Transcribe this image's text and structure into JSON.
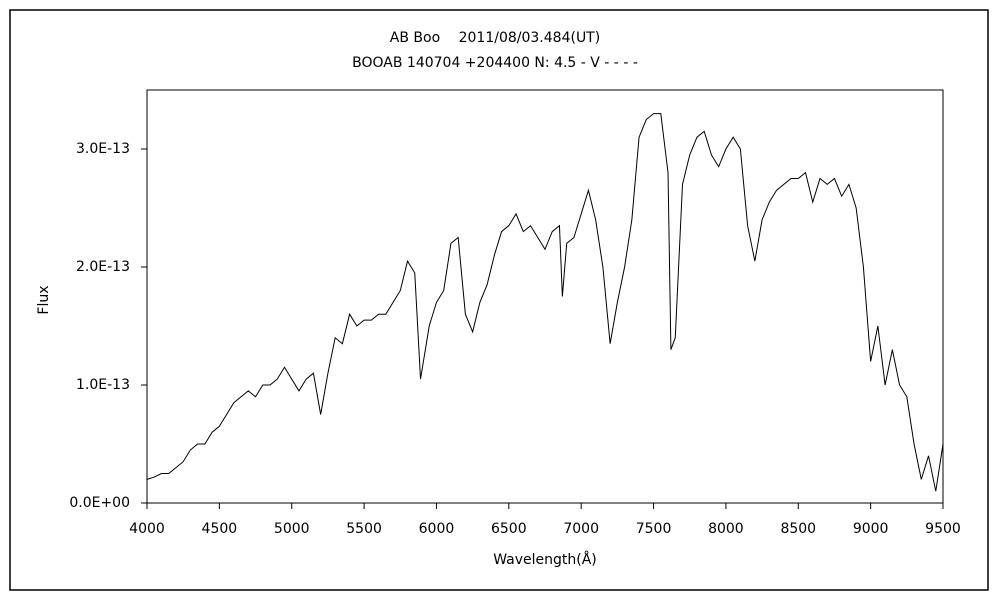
{
  "chart_data": {
    "type": "line",
    "title": "AB Boo　 2011/08/03.484(UT)",
    "subtitle": "BOOAB 140704 +204400 N: 4.5 - V - - - -",
    "x_label": "Wavelength(Å)",
    "y_label": "Flux",
    "color": "#000000",
    "grid": false,
    "xlim": [
      4000,
      9500
    ],
    "xticks": [
      4000,
      4500,
      5000,
      5500,
      6000,
      6500,
      7000,
      7500,
      8000,
      8500,
      9000,
      9500
    ],
    "ylim": [
      0,
      3.5e-13
    ],
    "yticks": [
      {
        "value": 0,
        "label": "0.0E+00"
      },
      {
        "value": 1e-13,
        "label": "1.0E-13"
      },
      {
        "value": 2e-13,
        "label": "2.0E-13"
      },
      {
        "value": 3e-13,
        "label": "3.0E-13"
      }
    ],
    "x": [
      4000,
      4050,
      4100,
      4150,
      4200,
      4250,
      4300,
      4350,
      4400,
      4450,
      4500,
      4550,
      4600,
      4650,
      4700,
      4750,
      4800,
      4850,
      4900,
      4950,
      5000,
      5050,
      5100,
      5150,
      5200,
      5250,
      5300,
      5350,
      5400,
      5450,
      5500,
      5550,
      5600,
      5650,
      5700,
      5750,
      5800,
      5850,
      5890,
      5950,
      6000,
      6050,
      6100,
      6150,
      6200,
      6250,
      6300,
      6350,
      6400,
      6450,
      6500,
      6550,
      6600,
      6650,
      6700,
      6750,
      6800,
      6850,
      6870,
      6900,
      6950,
      7000,
      7050,
      7100,
      7150,
      7200,
      7250,
      7300,
      7350,
      7400,
      7450,
      7500,
      7550,
      7600,
      7620,
      7650,
      7700,
      7750,
      7800,
      7850,
      7900,
      7950,
      8000,
      8050,
      8100,
      8150,
      8200,
      8250,
      8300,
      8350,
      8400,
      8450,
      8500,
      8550,
      8600,
      8650,
      8700,
      8750,
      8800,
      8850,
      8900,
      8950,
      9000,
      9050,
      9100,
      9150,
      9200,
      9250,
      9300,
      9350,
      9400,
      9450,
      9500
    ],
    "values": [
      2e-14,
      2.2e-14,
      2.5e-14,
      2.5e-14,
      3e-14,
      3.5e-14,
      4.5e-14,
      5e-14,
      5e-14,
      6e-14,
      6.5e-14,
      7.5e-14,
      8.5e-14,
      9e-14,
      9.5e-14,
      9e-14,
      1e-13,
      1e-13,
      1.05e-13,
      1.15e-13,
      1.05e-13,
      9.5e-14,
      1.05e-13,
      1.1e-13,
      7.5e-14,
      1.1e-13,
      1.4e-13,
      1.35e-13,
      1.6e-13,
      1.5e-13,
      1.55e-13,
      1.55e-13,
      1.6e-13,
      1.6e-13,
      1.7e-13,
      1.8e-13,
      2.05e-13,
      1.95e-13,
      1.05e-13,
      1.5e-13,
      1.7e-13,
      1.8e-13,
      2.2e-13,
      2.25e-13,
      1.6e-13,
      1.45e-13,
      1.7e-13,
      1.85e-13,
      2.1e-13,
      2.3e-13,
      2.35e-13,
      2.45e-13,
      2.3e-13,
      2.35e-13,
      2.25e-13,
      2.15e-13,
      2.3e-13,
      2.35e-13,
      1.75e-13,
      2.2e-13,
      2.25e-13,
      2.45e-13,
      2.65e-13,
      2.4e-13,
      2e-13,
      1.35e-13,
      1.7e-13,
      2e-13,
      2.4e-13,
      3.1e-13,
      3.25e-13,
      3.3e-13,
      3.3e-13,
      2.8e-13,
      1.3e-13,
      1.4e-13,
      2.7e-13,
      2.95e-13,
      3.1e-13,
      3.15e-13,
      2.95e-13,
      2.85e-13,
      3e-13,
      3.1e-13,
      3e-13,
      2.35e-13,
      2.05e-13,
      2.4e-13,
      2.55e-13,
      2.65e-13,
      2.7e-13,
      2.75e-13,
      2.75e-13,
      2.8e-13,
      2.55e-13,
      2.75e-13,
      2.7e-13,
      2.75e-13,
      2.6e-13,
      2.7e-13,
      2.5e-13,
      2e-13,
      1.2e-13,
      1.5e-13,
      1e-13,
      1.3e-13,
      1e-13,
      9e-14,
      5e-14,
      2e-14,
      4e-14,
      1e-14,
      5e-14
    ]
  }
}
